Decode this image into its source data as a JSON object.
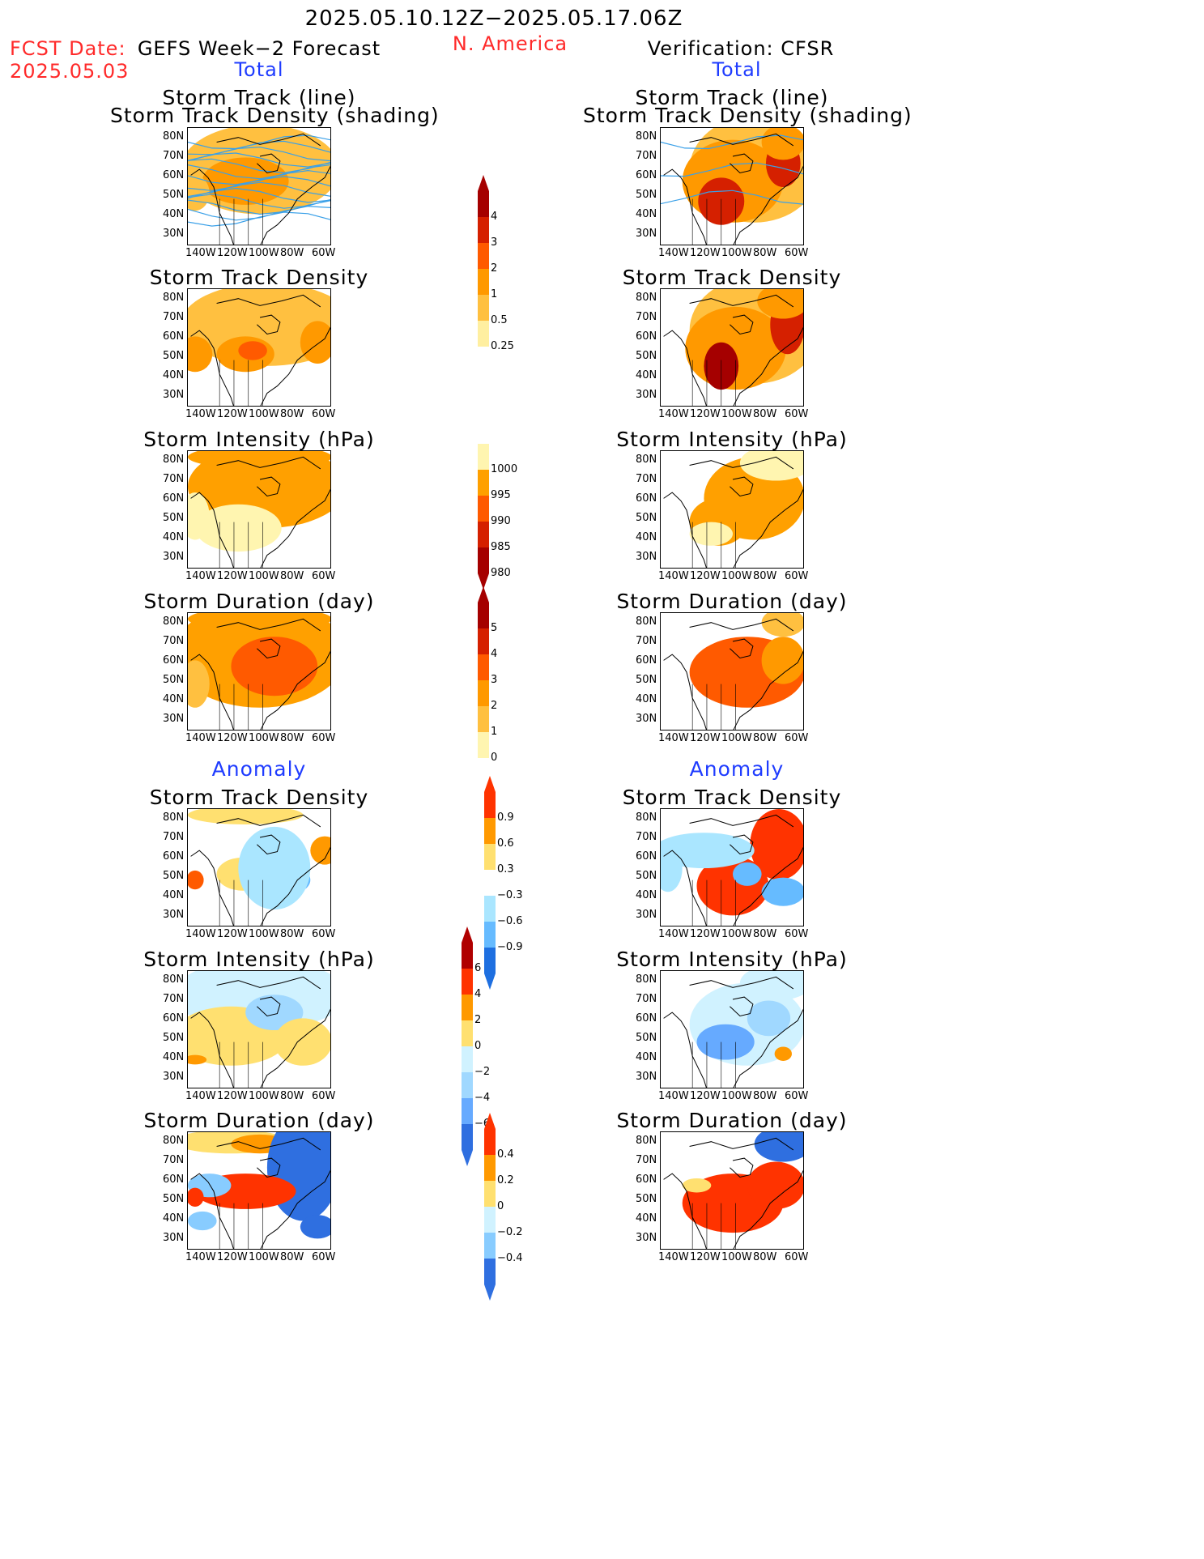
{
  "header": {
    "date_range": "2025.05.10.12Z−2025.05.17.06Z",
    "fcst_label": "FCST Date:",
    "fcst_date": "2025.05.03",
    "forecast_title": "GEFS Week−2 Forecast",
    "region": "N. America",
    "verification_title": "Verification: CFSR",
    "left_total": "Total",
    "right_total": "Total",
    "left_anomaly": "Anomaly",
    "right_anomaly": "Anomaly"
  },
  "panel_titles": {
    "track_line": "Storm Track (line)",
    "track_density_shading": "Storm Track Density (shading)",
    "density": "Storm Track Density",
    "intensity": "Storm Intensity (hPa)",
    "duration": "Storm Duration (day)"
  },
  "axes": {
    "lat_ticks": [
      "80N",
      "70N",
      "60N",
      "50N",
      "40N",
      "30N"
    ],
    "lon_ticks": [
      "140W",
      "120W",
      "100W",
      "80W",
      "60W"
    ]
  },
  "colorbars": {
    "density": {
      "labels": [
        "4",
        "3",
        "2",
        "1",
        "0.5",
        "0.25"
      ],
      "colors": [
        "#a50000",
        "#d52000",
        "#ff5a00",
        "#ff9900",
        "#ffc040",
        "#ffefa0"
      ]
    },
    "intensity": {
      "labels": [
        "1000",
        "995",
        "990",
        "985",
        "980"
      ],
      "colors": [
        "#fff5b0",
        "#ffa000",
        "#ff5a00",
        "#d52000",
        "#a50000"
      ]
    },
    "duration": {
      "labels": [
        "5",
        "4",
        "3",
        "2",
        "1",
        "0"
      ],
      "colors": [
        "#a50000",
        "#d52000",
        "#ff5a00",
        "#ff9900",
        "#ffc040",
        "#fff5b0"
      ]
    },
    "anom_density": {
      "labels": [
        "0.9",
        "0.6",
        "0.3",
        "−0.3",
        "−0.6",
        "−0.9"
      ],
      "colors": [
        "#ff3300",
        "#ff9900",
        "#ffe070",
        "#ffffff",
        "#aae6ff",
        "#66bbff",
        "#1e6fe0"
      ]
    },
    "anom_intensity": {
      "labels": [
        "6",
        "4",
        "2",
        "0",
        "−2",
        "−4",
        "−6"
      ],
      "colors": [
        "#b00000",
        "#ff3300",
        "#ff9900",
        "#ffe070",
        "#d0f2ff",
        "#a0d8ff",
        "#66aaff",
        "#2f6fe0"
      ]
    },
    "anom_duration": {
      "labels": [
        "0.4",
        "0.2",
        "0",
        "−0.2",
        "−0.4"
      ],
      "colors": [
        "#ff3300",
        "#ff9900",
        "#ffe070",
        "#d0f2ff",
        "#88ccff",
        "#2f6fe0"
      ]
    }
  }
}
